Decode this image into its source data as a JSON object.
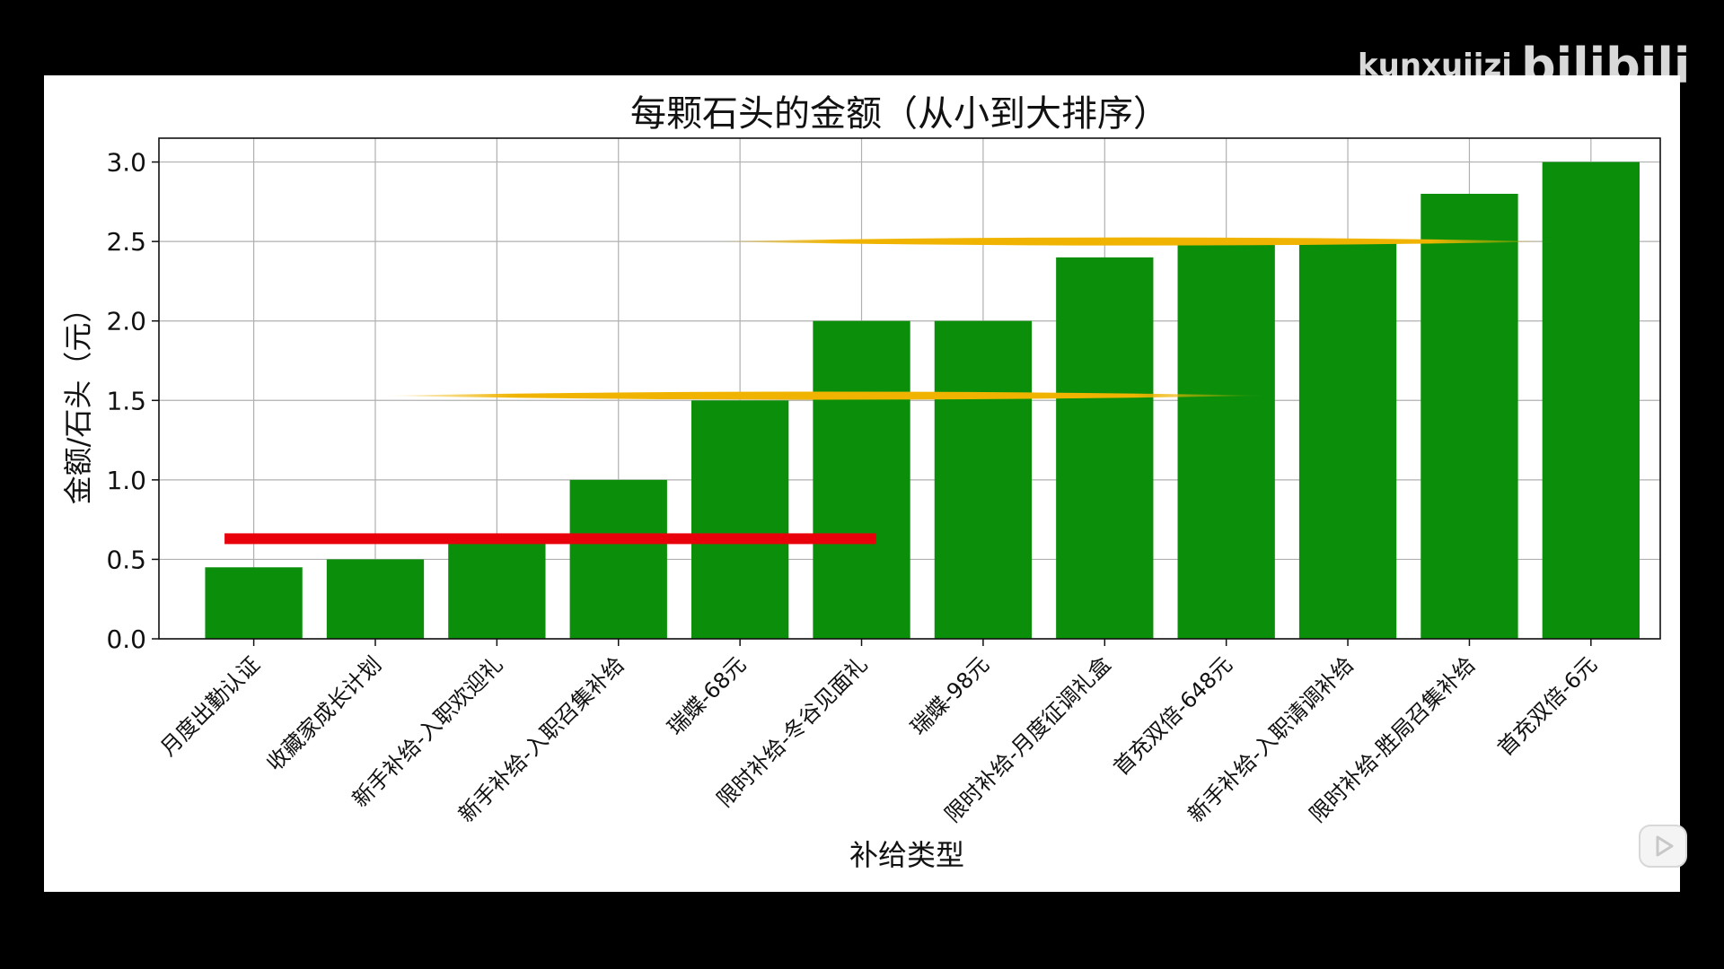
{
  "watermark": {
    "user": "kunxuiizi",
    "logo": "bilibili"
  },
  "chart_data": {
    "type": "bar",
    "title": "每颗石头的金额（从小到大排序）",
    "xlabel": "补给类型",
    "ylabel": "金额/石头（元）",
    "ylim": [
      0,
      3.15
    ],
    "yticks": [
      "0.0",
      "0.5",
      "1.0",
      "1.5",
      "2.0",
      "2.5",
      "3.0"
    ],
    "grid": true,
    "bar_color": "#0b8f0b",
    "categories": [
      "月度出勤认证",
      "收藏家成长计划",
      "新手补给-入职欢迎礼",
      "新手补给-入职召集补给",
      "瑞蝶-68元",
      "限时补给-冬谷见面礼",
      "瑞蝶-98元",
      "限时补给-月度征调礼盒",
      "首充双倍-648元",
      "新手补给-入职请调补给",
      "限时补给-胜局召集补给",
      "首充双倍-6元"
    ],
    "values": [
      0.45,
      0.5,
      0.6,
      1.0,
      1.5,
      2.0,
      2.0,
      2.4,
      2.5,
      2.5,
      2.8,
      3.0
    ],
    "annotations": [
      {
        "type": "line",
        "color": "#e8000b",
        "y": 0.63,
        "x_from": 0,
        "x_to": 5
      },
      {
        "type": "brush-line",
        "color": "#f0b400",
        "y": 1.53,
        "x_from": 1.3,
        "x_to": 8.2
      },
      {
        "type": "brush-line",
        "color": "#f0b400",
        "y": 2.5,
        "x_from": 4.0,
        "x_to": 10.6
      }
    ]
  }
}
